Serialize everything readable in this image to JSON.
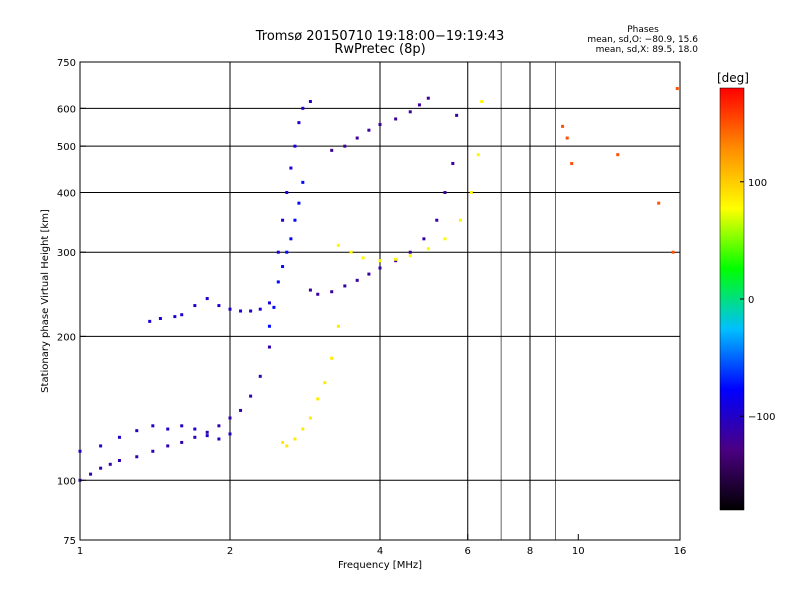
{
  "chart_data": {
    "type": "scatter",
    "title": "Tromsø 20150710 19:18:00−19:19:43",
    "subtitle": "RwPretec (8p)",
    "xlabel": "Frequency [MHz]",
    "ylabel": "Stationary phase Virtual Height [km]",
    "x_scale": "log",
    "y_scale": "log",
    "xlim": [
      1,
      16
    ],
    "ylim": [
      75,
      750
    ],
    "x_ticks": [
      1,
      2,
      4,
      6,
      8,
      10,
      16
    ],
    "x_tick_labels": [
      "1",
      "2",
      "4",
      "6",
      "8",
      "10",
      "16"
    ],
    "x_grid": [
      2,
      4,
      6,
      8
    ],
    "x_minor_lines": [
      7,
      9
    ],
    "y_ticks": [
      75,
      100,
      200,
      300,
      400,
      500,
      600,
      750
    ],
    "y_tick_labels": [
      "75",
      "100",
      "200",
      "300",
      "400",
      "500",
      "600",
      "750"
    ],
    "y_grid": [
      100,
      200,
      300,
      400,
      500,
      600
    ],
    "grid": true,
    "stats": {
      "heading": "Phases",
      "line1": "mean, sd,O: −80.9, 15.6",
      "line2": "mean, sd,X:  89.5, 18.0"
    },
    "colorbar": {
      "label": "[deg]",
      "min": -180,
      "max": 180,
      "ticks": [
        100,
        0,
        -100
      ],
      "tick_labels": [
        "100",
        "0",
        "−100"
      ],
      "colors": [
        "#000000",
        "#4b0082",
        "#0000ff",
        "#00bfff",
        "#00ff00",
        "#ffff00",
        "#ff8c00",
        "#ff0000"
      ]
    },
    "series": [
      {
        "phase": -110,
        "x": [
          1.0,
          1.05,
          1.1,
          1.15,
          1.2,
          1.3,
          1.4,
          1.5,
          1.6,
          1.7,
          1.8,
          1.9,
          2.0,
          2.1,
          2.2,
          2.3,
          2.4
        ],
        "y": [
          100,
          103,
          106,
          108,
          110,
          112,
          115,
          118,
          120,
          123,
          126,
          130,
          135,
          140,
          150,
          165,
          190
        ]
      },
      {
        "phase": -100,
        "x": [
          1.0,
          1.1,
          1.2,
          1.3,
          1.4,
          1.5,
          1.6,
          1.7,
          1.8,
          1.9,
          2.0
        ],
        "y": [
          115,
          118,
          123,
          127,
          130,
          128,
          130,
          128,
          124,
          122,
          125
        ]
      },
      {
        "phase": -95,
        "x": [
          1.38,
          1.45,
          1.55,
          1.6,
          1.7,
          1.8,
          1.9,
          2.0,
          2.1,
          2.2,
          2.3,
          2.4
        ],
        "y": [
          215,
          218,
          220,
          222,
          232,
          240,
          232,
          228,
          226,
          226,
          228,
          235
        ]
      },
      {
        "phase": -95,
        "x": [
          2.5,
          2.55,
          2.6,
          2.65,
          2.7,
          2.75,
          2.8,
          2.9
        ],
        "y": [
          300,
          350,
          400,
          450,
          500,
          560,
          600,
          620
        ]
      },
      {
        "phase": -115,
        "x": [
          2.9,
          3.0,
          3.2,
          3.4,
          3.6,
          3.8,
          4.0,
          4.3,
          4.6,
          4.9,
          5.2,
          5.4,
          5.6,
          5.7
        ],
        "y": [
          250,
          245,
          248,
          255,
          262,
          270,
          278,
          288,
          300,
          320,
          350,
          400,
          460,
          580
        ]
      },
      {
        "phase": -120,
        "x": [
          3.2,
          3.4,
          3.6,
          3.8,
          4.0,
          4.3,
          4.6,
          4.8,
          5.0
        ],
        "y": [
          490,
          500,
          520,
          540,
          555,
          570,
          590,
          610,
          630
        ]
      },
      {
        "phase": 80,
        "x": [
          3.3,
          3.5,
          3.7,
          4.0,
          4.3,
          4.6,
          5.0,
          5.4,
          5.8,
          6.1,
          6.3,
          6.4
        ],
        "y": [
          310,
          300,
          292,
          288,
          290,
          295,
          305,
          320,
          350,
          400,
          480,
          620
        ]
      },
      {
        "phase": 85,
        "x": [
          2.55,
          2.6,
          2.7,
          2.8,
          2.9,
          3.0,
          3.1,
          3.2,
          3.3
        ],
        "y": [
          120,
          118,
          122,
          128,
          135,
          148,
          160,
          180,
          210
        ]
      },
      {
        "phase": -75,
        "x": [
          2.4,
          2.45,
          2.5,
          2.55,
          2.6,
          2.65,
          2.7,
          2.75,
          2.8
        ],
        "y": [
          210,
          230,
          260,
          280,
          300,
          320,
          350,
          380,
          420
        ]
      },
      {
        "phase": 150,
        "x": [
          9.3,
          9.5,
          9.7,
          12.0,
          14.5,
          15.5,
          15.8
        ],
        "y": [
          550,
          520,
          460,
          480,
          380,
          300,
          660
        ]
      }
    ]
  }
}
